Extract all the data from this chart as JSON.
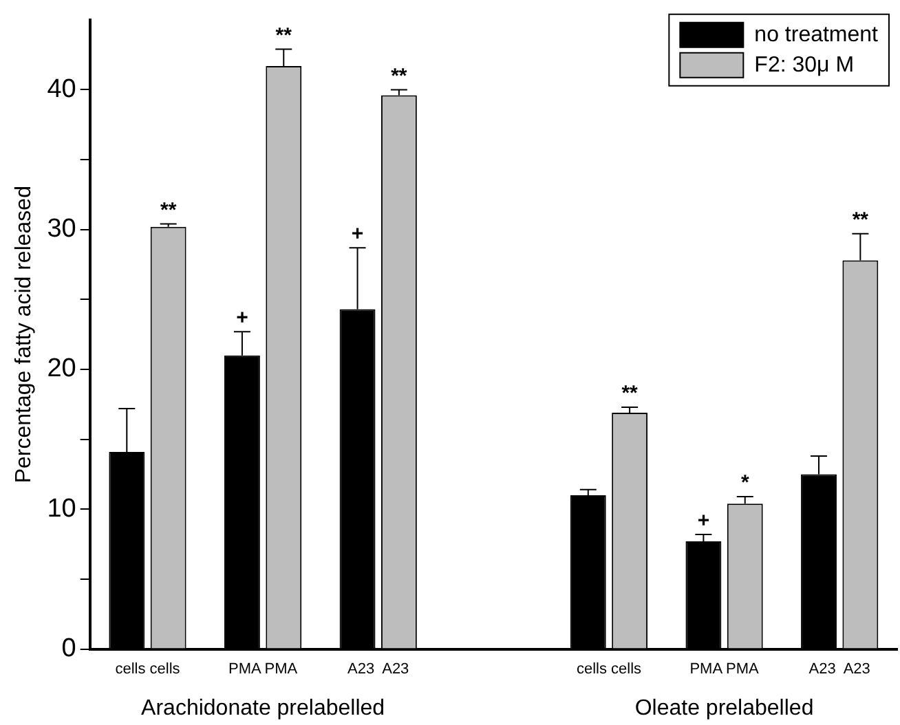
{
  "chart_data": {
    "type": "bar",
    "ylabel": "Percentage fatty acid released",
    "categories": [
      "cells cells",
      "PMA PMA",
      "A23  A23",
      null,
      "cells cells",
      "PMA PMA",
      "A23  A23"
    ],
    "series": [
      {
        "name": "no treatment",
        "color": "#000000",
        "values": [
          14.1,
          21.0,
          24.3,
          null,
          11.0,
          7.7,
          12.5
        ],
        "errors": [
          [
            14.1,
            17.2
          ],
          [
            21.0,
            22.7
          ],
          [
            24.3,
            28.7
          ],
          null,
          [
            11.0,
            11.4
          ],
          [
            7.7,
            8.2
          ],
          [
            12.5,
            13.8
          ]
        ],
        "value_labels": [
          null,
          "+",
          "+",
          null,
          null,
          "+",
          null
        ]
      },
      {
        "name": "F2: 30μ M",
        "color": "#bdbdbd",
        "values": [
          30.2,
          41.7,
          39.6,
          null,
          16.9,
          10.4,
          27.8
        ],
        "errors": [
          [
            30.2,
            30.4
          ],
          [
            41.7,
            42.9
          ],
          [
            39.6,
            40.0
          ],
          null,
          [
            16.9,
            17.3
          ],
          [
            10.4,
            10.9
          ],
          [
            27.8,
            29.7
          ]
        ],
        "value_labels": [
          "**",
          "**",
          "**",
          null,
          "**",
          "*",
          "**"
        ]
      }
    ],
    "ylim": [
      0,
      45
    ],
    "yticks": [
      0,
      {
        "value": 5,
        "label": null
      },
      10,
      {
        "value": 15,
        "label": null
      },
      20,
      {
        "value": 25,
        "label": null
      },
      30,
      {
        "value": 35,
        "label": null
      },
      40
    ],
    "grid": false,
    "legend": "top right",
    "annotations": [
      "Arachidonate prelabelled",
      "Oleate prelabelled"
    ]
  }
}
